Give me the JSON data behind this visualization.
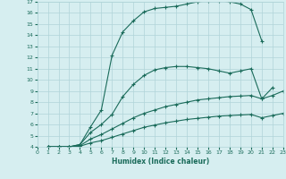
{
  "xlabel": "Humidex (Indice chaleur)",
  "bg_color": "#d6eef0",
  "grid_color": "#b0d4d8",
  "line_color": "#1a6b5a",
  "xlim": [
    0,
    23
  ],
  "ylim": [
    4,
    17
  ],
  "xticks": [
    0,
    1,
    2,
    3,
    4,
    5,
    6,
    7,
    8,
    9,
    10,
    11,
    12,
    13,
    14,
    15,
    16,
    17,
    18,
    19,
    20,
    21,
    22,
    23
  ],
  "yticks": [
    4,
    5,
    6,
    7,
    8,
    9,
    10,
    11,
    12,
    13,
    14,
    15,
    16,
    17
  ],
  "line1_x": [
    1,
    2,
    3,
    4,
    5,
    6,
    7,
    8,
    9,
    10,
    11,
    12,
    13,
    14,
    15,
    16,
    17,
    18,
    19,
    20,
    21
  ],
  "line1_y": [
    4,
    4,
    4,
    4.2,
    5.8,
    7.3,
    12.2,
    14.3,
    15.3,
    16.1,
    16.4,
    16.5,
    16.6,
    16.8,
    17.0,
    17.1,
    17.1,
    17.0,
    16.8,
    16.3,
    13.5
  ],
  "line2_x": [
    1,
    2,
    3,
    4,
    5,
    6,
    7,
    8,
    9,
    10,
    11,
    12,
    13,
    14,
    15,
    16,
    17,
    18,
    19,
    20,
    21,
    22
  ],
  "line2_y": [
    4,
    4,
    4,
    4.2,
    5.3,
    6.0,
    6.9,
    8.5,
    9.6,
    10.4,
    10.9,
    11.1,
    11.2,
    11.2,
    11.1,
    11.0,
    10.8,
    10.6,
    10.8,
    11.0,
    8.3,
    9.3
  ],
  "line3_x": [
    1,
    2,
    3,
    4,
    5,
    6,
    7,
    8,
    9,
    10,
    11,
    12,
    13,
    14,
    15,
    16,
    17,
    18,
    19,
    20,
    21,
    22,
    23
  ],
  "line3_y": [
    4,
    4,
    4,
    4.1,
    4.7,
    5.1,
    5.6,
    6.1,
    6.6,
    7.0,
    7.3,
    7.6,
    7.8,
    8.0,
    8.2,
    8.3,
    8.4,
    8.5,
    8.55,
    8.6,
    8.3,
    8.6,
    9.0
  ],
  "line4_x": [
    1,
    2,
    3,
    4,
    5,
    6,
    7,
    8,
    9,
    10,
    11,
    12,
    13,
    14,
    15,
    16,
    17,
    18,
    19,
    20,
    21,
    22,
    23
  ],
  "line4_y": [
    4,
    4,
    4,
    4.05,
    4.35,
    4.55,
    4.85,
    5.15,
    5.45,
    5.75,
    5.95,
    6.15,
    6.3,
    6.45,
    6.55,
    6.65,
    6.75,
    6.8,
    6.85,
    6.9,
    6.6,
    6.8,
    7.0
  ]
}
